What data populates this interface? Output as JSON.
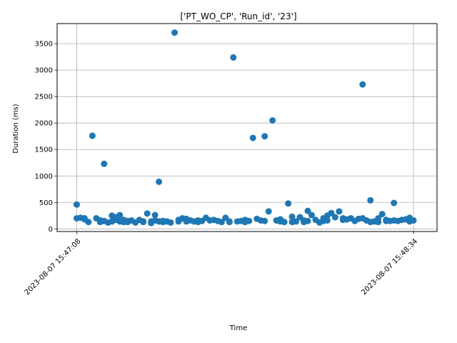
{
  "chart_data": {
    "type": "scatter",
    "title": "['PT_WO_CP', 'Run_id', '23']",
    "xlabel": "Time",
    "ylabel": "Duration (ms)",
    "xlim_seconds": [
      -5,
      92
    ],
    "ylim": [
      -50,
      3880
    ],
    "x_ticks": [
      {
        "value": 0,
        "label": "2023-08-07 15:47:08"
      },
      {
        "value": 86,
        "label": "2023-08-07 15:48:34"
      }
    ],
    "y_ticks": [
      {
        "value": 0,
        "label": "0"
      },
      {
        "value": 500,
        "label": "500"
      },
      {
        "value": 1000,
        "label": "1000"
      },
      {
        "value": 1500,
        "label": "1500"
      },
      {
        "value": 2000,
        "label": "2000"
      },
      {
        "value": 2500,
        "label": "2500"
      },
      {
        "value": 3000,
        "label": "3000"
      },
      {
        "value": 3500,
        "label": "3500"
      }
    ],
    "grid": true,
    "marker_color": "#1f77b4",
    "series": [
      {
        "x": [
          0,
          0,
          1,
          2,
          2,
          3,
          4,
          5,
          6,
          6,
          7,
          7,
          8,
          9,
          9,
          10,
          10,
          11,
          11,
          12,
          12,
          13,
          13,
          14,
          15,
          16,
          17,
          17,
          18,
          19,
          19,
          20,
          20,
          21,
          21,
          22,
          22,
          23,
          24,
          25,
          26,
          26,
          27,
          28,
          28,
          29,
          30,
          31,
          31,
          32,
          33,
          34,
          35,
          36,
          37,
          38,
          39,
          39,
          40,
          41,
          42,
          43,
          43,
          44,
          45,
          46,
          47,
          48,
          48,
          49,
          50,
          51,
          52,
          52,
          53,
          54,
          55,
          55,
          56,
          57,
          58,
          58,
          59,
          59,
          60,
          61,
          62,
          63,
          63,
          64,
          64,
          65,
          66,
          67,
          68,
          68,
          69,
          70,
          71,
          72,
          73,
          73,
          74,
          75,
          75,
          76,
          77,
          77,
          78,
          79,
          79,
          80,
          81,
          81,
          82,
          83,
          84,
          85,
          85,
          86
        ],
        "y": [
          460,
          200,
          210,
          180,
          200,
          130,
          1760,
          200,
          130,
          160,
          1230,
          150,
          120,
          250,
          140,
          220,
          170,
          260,
          140,
          170,
          130,
          150,
          130,
          160,
          120,
          170,
          130,
          140,
          290,
          140,
          110,
          260,
          160,
          140,
          890,
          130,
          150,
          140,
          120,
          3710,
          140,
          170,
          200,
          190,
          140,
          160,
          140,
          160,
          130,
          150,
          210,
          160,
          170,
          150,
          130,
          210,
          140,
          130,
          3240,
          140,
          150,
          170,
          130,
          150,
          1720,
          190,
          160,
          150,
          1750,
          330,
          2050,
          160,
          140,
          180,
          130,
          480,
          230,
          130,
          140,
          220,
          160,
          130,
          150,
          340,
          260,
          170,
          120,
          150,
          200,
          250,
          160,
          300,
          220,
          330,
          170,
          200,
          180,
          200,
          150,
          190,
          200,
          2730,
          160,
          130,
          540,
          140,
          130,
          200,
          280,
          150,
          170,
          150,
          490,
          160,
          150,
          170,
          180,
          140,
          210,
          160
        ]
      }
    ]
  }
}
